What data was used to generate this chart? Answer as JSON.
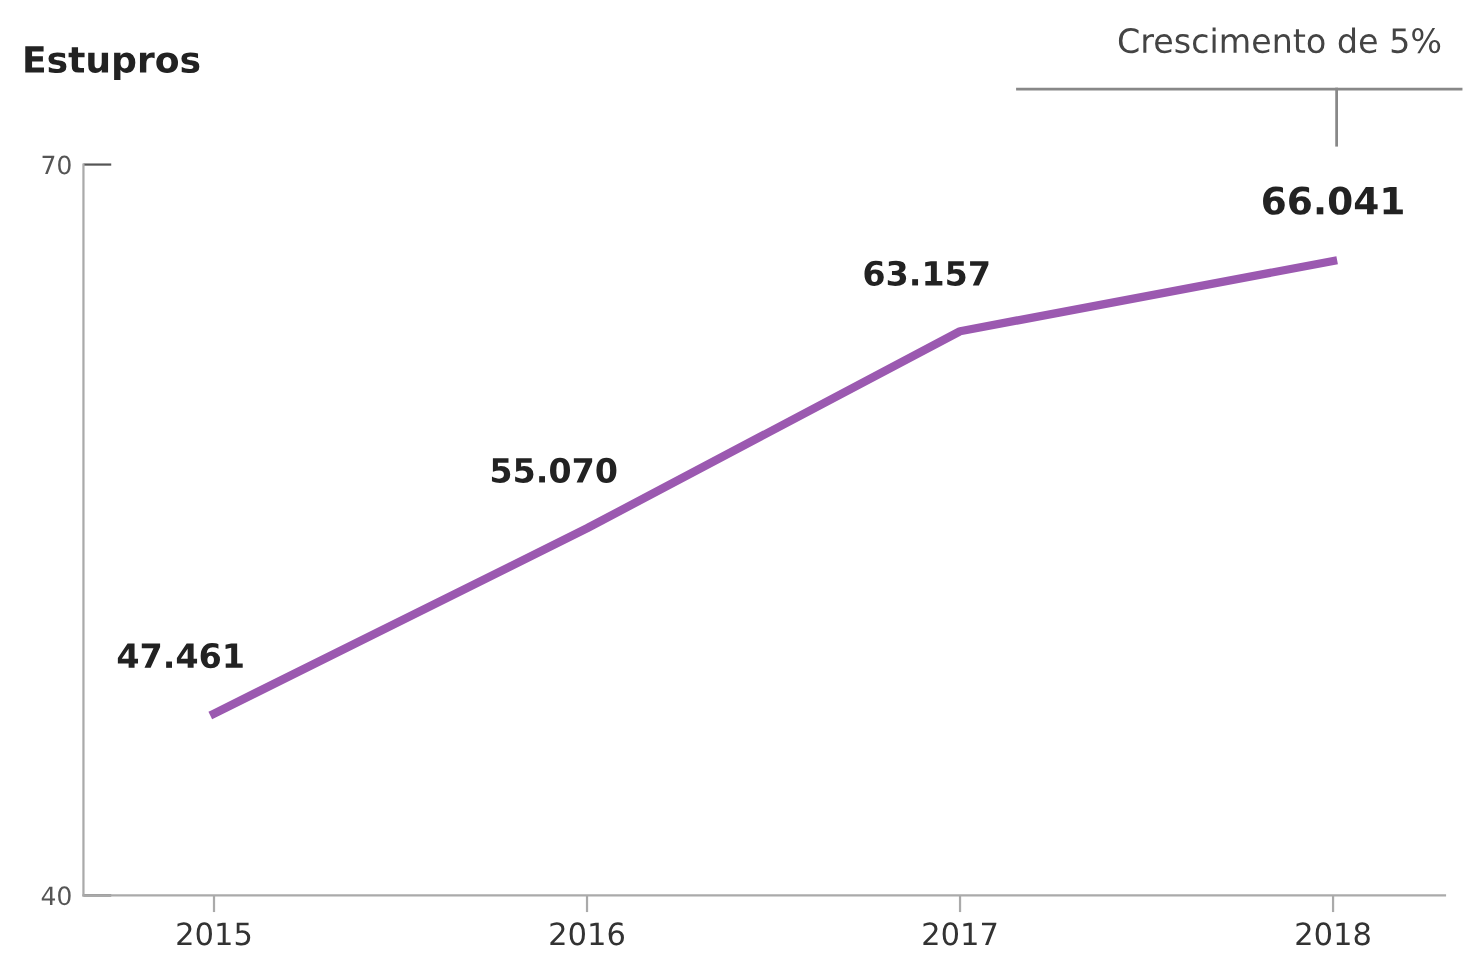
{
  "chart_data": {
    "type": "line",
    "title": "Estupros",
    "categories": [
      "2015",
      "2016",
      "2017",
      "2018"
    ],
    "series": [
      {
        "color": "#9b59b0",
        "values": [
          47.461,
          55.07,
          63.157,
          66.041
        ],
        "value_labels": [
          "47.461",
          "55.070",
          "63.157",
          "66.041"
        ]
      }
    ],
    "ylim": [
      40,
      70
    ],
    "yticks": [
      40,
      70
    ],
    "grid": false,
    "legend": false,
    "marker": "none",
    "line_style": "solid",
    "annotations": [
      "Crescimento de 5%"
    ]
  }
}
